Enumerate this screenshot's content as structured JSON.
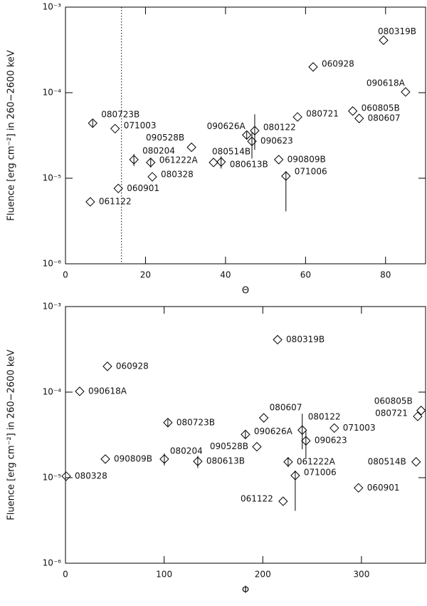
{
  "chart_data": [
    {
      "type": "scatter",
      "x_label": "Θ",
      "y_label": "Fluence [erg cm⁻²] in 260−2600 keV",
      "log_y": true,
      "color": "#000000",
      "xlim": [
        0,
        90
      ],
      "xticks": [
        0,
        20,
        40,
        60,
        80
      ],
      "ylim": [
        1e-06,
        0.001
      ],
      "yticks": [
        {
          "value": 1e-06,
          "label": "10⁻⁶"
        },
        {
          "value": 1e-05,
          "label": "10⁻⁵"
        },
        {
          "value": 0.0001,
          "label": "10⁻⁴"
        },
        {
          "value": 0.001,
          "label": "10⁻³"
        }
      ],
      "vline": 14,
      "labels": [
        "061122",
        "060901",
        "080328",
        "080204",
        "061222A",
        "080723B",
        "071003",
        "090528B",
        "080514B",
        "080613B",
        "090626A",
        "090623",
        "080122",
        "090809B",
        "071006",
        "080721",
        "060928",
        "060805B",
        "080607",
        "090618A",
        "080319B"
      ],
      "x": [
        6.2,
        13.2,
        21.7,
        17.1,
        21.3,
        6.8,
        12.4,
        31.5,
        37,
        38.9,
        45.3,
        46.6,
        47.3,
        53.3,
        55.1,
        58,
        61.9,
        71.8,
        73.4,
        85,
        79.5
      ],
      "values": [
        5.3e-06,
        7.6e-06,
        1.04e-05,
        1.65e-05,
        1.53e-05,
        4.4e-05,
        3.8e-05,
        2.3e-05,
        1.53e-05,
        1.55e-05,
        3.2e-05,
        2.7e-05,
        3.6e-05,
        1.65e-05,
        1.06e-05,
        5.2e-05,
        0.0002,
        6.1e-05,
        5e-05,
        0.000102,
        0.00041
      ],
      "err_minus": [
        null,
        null,
        null,
        2.6e-06,
        2e-06,
        4e-06,
        null,
        null,
        null,
        2.5e-06,
        3e-06,
        1e-05,
        1.45e-05,
        null,
        6.5e-06,
        null,
        null,
        null,
        null,
        null,
        null
      ],
      "err_plus": [
        null,
        null,
        null,
        2.7e-06,
        2e-06,
        4e-06,
        null,
        null,
        null,
        2.5e-06,
        3e-06,
        8e-06,
        2e-05,
        null,
        1.5e-06,
        null,
        null,
        null,
        null,
        null,
        null
      ]
    },
    {
      "type": "scatter",
      "x_label": "Φ",
      "y_label": "Fluence [erg cm⁻²] in 260−2600 keV",
      "log_y": true,
      "color": "#000000",
      "xlim": [
        0,
        365
      ],
      "xticks": [
        0,
        100,
        200,
        300
      ],
      "ylim": [
        1e-06,
        0.001
      ],
      "yticks": [
        {
          "value": 1e-06,
          "label": "10⁻⁶"
        },
        {
          "value": 1e-05,
          "label": "10⁻⁵"
        },
        {
          "value": 0.0001,
          "label": "10⁻⁴"
        },
        {
          "value": 0.001,
          "label": "10⁻³"
        }
      ],
      "labels": [
        "061122",
        "060901",
        "080328",
        "080204",
        "061222A",
        "080723B",
        "071003",
        "090528B",
        "080514B",
        "080613B",
        "090626A",
        "090623",
        "080122",
        "090809B",
        "071006",
        "080721",
        "060928",
        "060805B",
        "080607",
        "090618A",
        "080319B"
      ],
      "x": [
        220.6,
        297,
        0.7,
        100.2,
        225.7,
        103.8,
        272.5,
        194,
        355.4,
        134.1,
        182.4,
        243.7,
        240,
        40.4,
        232.9,
        357,
        42.5,
        360.5,
        201,
        14.4,
        215
      ],
      "values": [
        5.3e-06,
        7.6e-06,
        1.04e-05,
        1.65e-05,
        1.53e-05,
        4.4e-05,
        3.8e-05,
        2.3e-05,
        1.53e-05,
        1.55e-05,
        3.2e-05,
        2.7e-05,
        3.6e-05,
        1.65e-05,
        1.06e-05,
        5.2e-05,
        0.0002,
        6.1e-05,
        5e-05,
        0.000102,
        0.00041
      ],
      "err_minus": [
        null,
        null,
        null,
        2.6e-06,
        2e-06,
        4e-06,
        null,
        null,
        null,
        2.5e-06,
        3e-06,
        1e-05,
        1.45e-05,
        null,
        6.5e-06,
        null,
        null,
        null,
        null,
        null,
        null
      ],
      "err_plus": [
        null,
        null,
        null,
        2.7e-06,
        2e-06,
        4e-06,
        null,
        null,
        null,
        2.5e-06,
        3e-06,
        8e-06,
        2e-05,
        null,
        1.5e-06,
        null,
        null,
        null,
        null,
        null,
        null
      ]
    }
  ]
}
